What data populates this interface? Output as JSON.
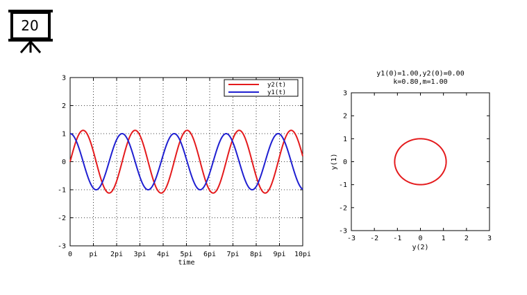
{
  "slide": {
    "number": "20"
  },
  "colors": {
    "red": "#e41a1c",
    "blue": "#1f1fd1",
    "axis": "#000000",
    "grid": "#000000"
  },
  "chart_data": [
    {
      "type": "line",
      "title": "",
      "xlabel": "time",
      "ylabel": "",
      "xlim": [
        0,
        31.4159
      ],
      "ylim": [
        -3,
        3
      ],
      "xticks": [
        0,
        3.14159,
        6.28319,
        9.42478,
        12.56637,
        15.70796,
        18.84956,
        21.99115,
        25.13274,
        28.27433,
        31.41593
      ],
      "xtick_labels": [
        "0",
        "pi",
        "2pi",
        "3pi",
        "4pi",
        "5pi",
        "6pi",
        "7pi",
        "8pi",
        "9pi",
        "10pi"
      ],
      "yticks": [
        -3,
        -2,
        -1,
        0,
        1,
        2,
        3
      ],
      "ytick_labels": [
        "-3",
        "-2",
        "-1",
        "0",
        "1",
        "2",
        "3"
      ],
      "grid": true,
      "legend_position": "top-right",
      "series": [
        {
          "name": "y2(t)",
          "color": "#e41a1c",
          "amplitude": 1.118,
          "omega": 0.8944,
          "phase": 0,
          "function": "sin"
        },
        {
          "name": "y1(t)",
          "color": "#1f1fd1",
          "amplitude": 1.0,
          "omega": 0.8944,
          "phase": 0,
          "function": "cos"
        }
      ]
    },
    {
      "type": "line",
      "title": "y1(0)=1.00,y2(0)=0.00",
      "subtitle": "k=0.80,m=1.00",
      "xlabel": "y(2)",
      "ylabel": "y(1)",
      "xlim": [
        -3,
        3
      ],
      "ylim": [
        -3,
        3
      ],
      "xticks": [
        -3,
        -2,
        -1,
        0,
        1,
        2,
        3
      ],
      "xtick_labels": [
        "-3",
        "-2",
        "-1",
        "0",
        "1",
        "2",
        "3"
      ],
      "yticks": [
        -3,
        -2,
        -1,
        0,
        1,
        2,
        3
      ],
      "ytick_labels": [
        "-3",
        "-2",
        "-1",
        "0",
        "1",
        "2",
        "3"
      ],
      "grid": false,
      "series": [
        {
          "name": "",
          "color": "#e41a1c",
          "x_amplitude": 1.118,
          "y_amplitude": 1.0,
          "shape": "ellipse"
        }
      ]
    }
  ]
}
